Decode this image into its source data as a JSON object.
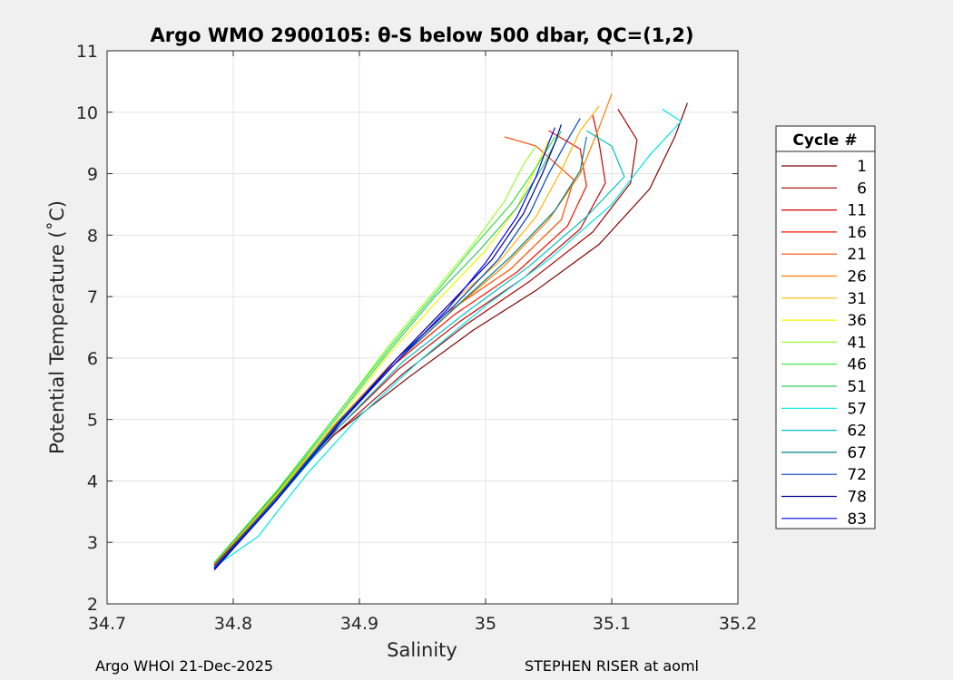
{
  "chart_data": {
    "type": "line",
    "title": "Argo WMO 2900105: θ-S below 500 dbar,  QC=(1,2)",
    "xlabel": "Salinity",
    "ylabel": "Potential Temperature (˚C)",
    "xlim": [
      34.7,
      35.2
    ],
    "ylim": [
      2,
      11
    ],
    "xticks": [
      "34.7",
      "34.8",
      "34.9",
      "35",
      "35.1",
      "35.2"
    ],
    "yticks": [
      "2",
      "3",
      "4",
      "5",
      "6",
      "7",
      "8",
      "9",
      "10",
      "11"
    ],
    "grid": true,
    "legend": {
      "title": "Cycle #",
      "placement": "right-outside"
    },
    "series": [
      {
        "name": "1",
        "color": "#800000",
        "points": [
          [
            34.785,
            2.62
          ],
          [
            34.83,
            3.65
          ],
          [
            34.88,
            4.75
          ],
          [
            34.94,
            5.7
          ],
          [
            34.99,
            6.45
          ],
          [
            35.04,
            7.1
          ],
          [
            35.09,
            7.85
          ],
          [
            35.13,
            8.75
          ],
          [
            35.15,
            9.6
          ],
          [
            35.16,
            10.15
          ]
        ]
      },
      {
        "name": "6",
        "color": "#a60000",
        "points": [
          [
            34.785,
            2.62
          ],
          [
            34.83,
            3.65
          ],
          [
            34.88,
            4.75
          ],
          [
            34.935,
            5.75
          ],
          [
            34.985,
            6.55
          ],
          [
            35.035,
            7.25
          ],
          [
            35.085,
            8.05
          ],
          [
            35.115,
            8.85
          ],
          [
            35.12,
            9.55
          ],
          [
            35.105,
            10.05
          ]
        ]
      },
      {
        "name": "11",
        "color": "#cc0000",
        "points": [
          [
            34.785,
            2.63
          ],
          [
            34.83,
            3.7
          ],
          [
            34.88,
            4.8
          ],
          [
            34.93,
            5.8
          ],
          [
            34.98,
            6.6
          ],
          [
            35.03,
            7.3
          ],
          [
            35.075,
            8.1
          ],
          [
            35.095,
            8.85
          ],
          [
            35.09,
            9.5
          ],
          [
            35.085,
            9.95
          ]
        ]
      },
      {
        "name": "16",
        "color": "#f21000",
        "points": [
          [
            34.785,
            2.64
          ],
          [
            34.83,
            3.7
          ],
          [
            34.88,
            4.85
          ],
          [
            34.925,
            5.85
          ],
          [
            34.975,
            6.7
          ],
          [
            35.025,
            7.4
          ],
          [
            35.065,
            8.15
          ],
          [
            35.08,
            8.8
          ],
          [
            35.075,
            9.4
          ],
          [
            35.05,
            9.7
          ]
        ]
      },
      {
        "name": "21",
        "color": "#ff4a00",
        "points": [
          [
            34.785,
            2.65
          ],
          [
            34.83,
            3.72
          ],
          [
            34.88,
            4.9
          ],
          [
            34.925,
            5.9
          ],
          [
            34.97,
            6.75
          ],
          [
            35.02,
            7.45
          ],
          [
            35.06,
            8.25
          ],
          [
            35.07,
            8.9
          ],
          [
            35.04,
            9.45
          ],
          [
            35.015,
            9.6
          ]
        ]
      },
      {
        "name": "26",
        "color": "#ff8000",
        "points": [
          [
            34.785,
            2.65
          ],
          [
            34.835,
            3.75
          ],
          [
            34.885,
            4.95
          ],
          [
            34.93,
            5.95
          ],
          [
            34.975,
            6.8
          ],
          [
            35.015,
            7.5
          ],
          [
            35.05,
            8.25
          ],
          [
            35.075,
            9.0
          ],
          [
            35.09,
            9.75
          ],
          [
            35.1,
            10.3
          ]
        ]
      },
      {
        "name": "31",
        "color": "#ffb500",
        "points": [
          [
            34.785,
            2.66
          ],
          [
            34.835,
            3.78
          ],
          [
            34.885,
            5.0
          ],
          [
            34.93,
            6.0
          ],
          [
            34.97,
            6.85
          ],
          [
            35.01,
            7.55
          ],
          [
            35.04,
            8.3
          ],
          [
            35.06,
            9.05
          ],
          [
            35.075,
            9.7
          ],
          [
            35.09,
            10.1
          ]
        ]
      },
      {
        "name": "36",
        "color": "#f5f500",
        "points": [
          [
            34.785,
            2.66
          ],
          [
            34.835,
            3.8
          ],
          [
            34.885,
            5.05
          ],
          [
            34.925,
            6.1
          ],
          [
            34.965,
            7.0
          ],
          [
            35.0,
            7.75
          ],
          [
            35.025,
            8.45
          ],
          [
            35.04,
            9.1
          ],
          [
            35.05,
            9.55
          ]
        ]
      },
      {
        "name": "41",
        "color": "#99ff33",
        "points": [
          [
            34.785,
            2.67
          ],
          [
            34.835,
            3.85
          ],
          [
            34.885,
            5.15
          ],
          [
            34.925,
            6.25
          ],
          [
            34.96,
            7.1
          ],
          [
            34.99,
            7.85
          ],
          [
            35.015,
            8.55
          ],
          [
            35.03,
            9.15
          ],
          [
            35.04,
            9.45
          ]
        ]
      },
      {
        "name": "46",
        "color": "#33e633",
        "points": [
          [
            34.785,
            2.67
          ],
          [
            34.835,
            3.85
          ],
          [
            34.885,
            5.15
          ],
          [
            34.925,
            6.2
          ],
          [
            34.96,
            7.05
          ],
          [
            34.99,
            7.8
          ],
          [
            35.02,
            8.5
          ],
          [
            35.04,
            9.1
          ],
          [
            35.055,
            9.6
          ]
        ]
      },
      {
        "name": "51",
        "color": "#33cc66",
        "points": [
          [
            34.785,
            2.66
          ],
          [
            34.835,
            3.82
          ],
          [
            34.885,
            5.1
          ],
          [
            34.925,
            6.15
          ],
          [
            34.96,
            7.0
          ],
          [
            34.995,
            7.75
          ],
          [
            35.025,
            8.45
          ],
          [
            35.045,
            9.1
          ],
          [
            35.06,
            9.7
          ]
        ]
      },
      {
        "name": "57",
        "color": "#00e6e6",
        "points": [
          [
            34.785,
            2.6
          ],
          [
            34.82,
            3.1
          ],
          [
            34.835,
            3.5
          ],
          [
            34.86,
            4.15
          ],
          [
            34.9,
            5.05
          ],
          [
            34.95,
            6.0
          ],
          [
            35.0,
            6.85
          ],
          [
            35.05,
            7.6
          ],
          [
            35.1,
            8.5
          ],
          [
            35.13,
            9.3
          ],
          [
            35.155,
            9.85
          ],
          [
            35.14,
            10.05
          ]
        ]
      },
      {
        "name": "62",
        "color": "#00bfbf",
        "points": [
          [
            34.785,
            2.6
          ],
          [
            34.835,
            3.7
          ],
          [
            34.885,
            4.9
          ],
          [
            34.935,
            5.95
          ],
          [
            34.985,
            6.75
          ],
          [
            35.035,
            7.5
          ],
          [
            35.08,
            8.3
          ],
          [
            35.11,
            8.95
          ],
          [
            35.1,
            9.45
          ],
          [
            35.08,
            9.7
          ]
        ]
      },
      {
        "name": "67",
        "color": "#008080",
        "points": [
          [
            34.785,
            2.59
          ],
          [
            34.835,
            3.75
          ],
          [
            34.885,
            5.0
          ],
          [
            34.935,
            6.05
          ],
          [
            34.98,
            6.9
          ],
          [
            35.02,
            7.65
          ],
          [
            35.055,
            8.4
          ],
          [
            35.075,
            9.05
          ],
          [
            35.08,
            9.6
          ]
        ]
      },
      {
        "name": "72",
        "color": "#0040bf",
        "points": [
          [
            34.785,
            2.58
          ],
          [
            34.835,
            3.72
          ],
          [
            34.885,
            4.98
          ],
          [
            34.93,
            6.0
          ],
          [
            34.975,
            6.85
          ],
          [
            35.01,
            7.6
          ],
          [
            35.035,
            8.35
          ],
          [
            35.05,
            9.0
          ],
          [
            35.065,
            9.55
          ],
          [
            35.075,
            9.9
          ]
        ]
      },
      {
        "name": "78",
        "color": "#000099",
        "points": [
          [
            34.785,
            2.57
          ],
          [
            34.835,
            3.7
          ],
          [
            34.885,
            4.95
          ],
          [
            34.93,
            6.0
          ],
          [
            34.97,
            6.85
          ],
          [
            35.005,
            7.6
          ],
          [
            35.03,
            8.35
          ],
          [
            35.045,
            9.0
          ],
          [
            35.055,
            9.5
          ],
          [
            35.06,
            9.8
          ]
        ]
      },
      {
        "name": "83",
        "color": "#0000ff",
        "points": [
          [
            34.785,
            2.55
          ],
          [
            34.835,
            3.7
          ],
          [
            34.885,
            4.95
          ],
          [
            34.93,
            5.95
          ],
          [
            34.97,
            6.8
          ],
          [
            35.0,
            7.55
          ],
          [
            35.025,
            8.3
          ],
          [
            35.04,
            8.95
          ],
          [
            35.05,
            9.5
          ],
          [
            35.055,
            9.75
          ]
        ]
      }
    ]
  },
  "footer": {
    "left": "Argo WHOI 21-Dec-2025",
    "right": "STEPHEN RISER at aoml"
  }
}
